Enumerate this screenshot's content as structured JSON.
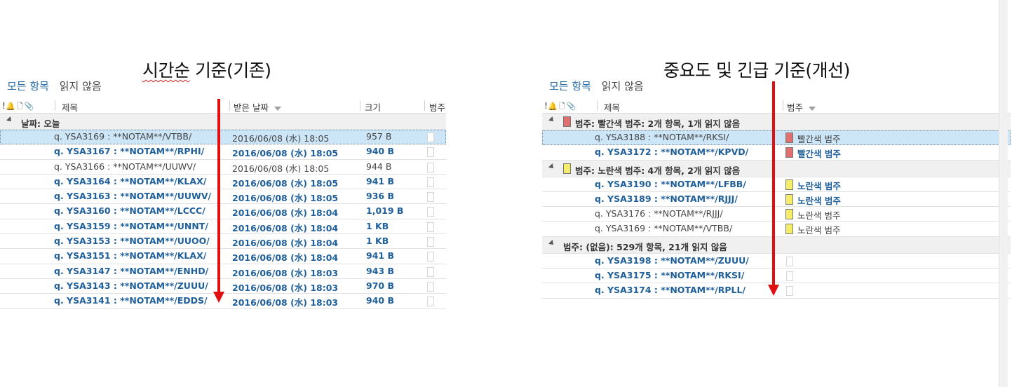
{
  "left": {
    "caption_main": "시간순",
    "caption_rest": " 기준(기존)",
    "filters": {
      "all": "모든 항목",
      "unread": "읽지 않음"
    },
    "columns": {
      "flags": "!",
      "subject": "제목",
      "received": "받은 날짜",
      "size": "크기",
      "category": "범주"
    },
    "group": "날짜: 오늘",
    "rows": [
      {
        "subject": "q. YSA3169 : **NOTAM**/VTBB/",
        "date": "2016/06/08 (水) 18:05",
        "size": "957 B",
        "state": "selected"
      },
      {
        "subject": "q. YSA3167 : **NOTAM**/RPHI/",
        "date": "2016/06/08 (水) 18:05",
        "size": "940 B",
        "state": "unread"
      },
      {
        "subject": "q. YSA3166 : **NOTAM**/UUWV/",
        "date": "2016/06/08 (水) 18:05",
        "size": "944 B",
        "state": "read"
      },
      {
        "subject": "q. YSA3164 : **NOTAM**/KLAX/",
        "date": "2016/06/08 (水) 18:05",
        "size": "941 B",
        "state": "unread"
      },
      {
        "subject": "q. YSA3163 : **NOTAM**/UUWV/",
        "date": "2016/06/08 (水) 18:05",
        "size": "936 B",
        "state": "unread"
      },
      {
        "subject": "q. YSA3160 : **NOTAM**/LCCC/",
        "date": "2016/06/08 (水) 18:04",
        "size": "1,019 B",
        "state": "unread"
      },
      {
        "subject": "q. YSA3159 : **NOTAM**/UNNT/",
        "date": "2016/06/08 (水) 18:04",
        "size": "1 KB",
        "state": "unread"
      },
      {
        "subject": "q. YSA3153 : **NOTAM**/UUOO/",
        "date": "2016/06/08 (水) 18:04",
        "size": "1 KB",
        "state": "unread"
      },
      {
        "subject": "q. YSA3151 : **NOTAM**/KLAX/",
        "date": "2016/06/08 (水) 18:04",
        "size": "941 B",
        "state": "unread"
      },
      {
        "subject": "q. YSA3147 : **NOTAM**/ENHD/",
        "date": "2016/06/08 (水) 18:03",
        "size": "943 B",
        "state": "unread"
      },
      {
        "subject": "q. YSA3143 : **NOTAM**/ZUUU/",
        "date": "2016/06/08 (水) 18:03",
        "size": "970 B",
        "state": "unread"
      },
      {
        "subject": "q. YSA3141 : **NOTAM**/EDDS/",
        "date": "2016/06/08 (水) 18:03",
        "size": "940 B",
        "state": "unread"
      }
    ]
  },
  "right": {
    "caption": "중요도 및 긴급 기준(개선)",
    "filters": {
      "all": "모든 항목",
      "unread": "읽지 않음"
    },
    "columns": {
      "flags": "!",
      "subject": "제목",
      "category": "범주"
    },
    "groups": [
      {
        "label": "범주: 빨간색 범주: 2개 항목, 1개 읽지 않음",
        "color": "#e07070",
        "rows": [
          {
            "subject": "q. YSA3188 : **NOTAM**/RKSI/",
            "category": "빨간색 범주",
            "state": "selected"
          },
          {
            "subject": "q. YSA3172 : **NOTAM**/KPVD/",
            "category": "빨간색 범주",
            "state": "unread"
          }
        ]
      },
      {
        "label": "범주: 노란색 범주: 4개 항목, 2개 읽지 않음",
        "color": "#f5ec6a",
        "rows": [
          {
            "subject": "q. YSA3190 : **NOTAM**/LFBB/",
            "category": "노란색 범주",
            "state": "unread"
          },
          {
            "subject": "q. YSA3189 : **NOTAM**/RJJJ/",
            "category": "노란색 범주",
            "state": "unread"
          },
          {
            "subject": "q. YSA3176 : **NOTAM**/RJJJ/",
            "category": "노란색 범주",
            "state": "read"
          },
          {
            "subject": "q. YSA3169 : **NOTAM**/VTBB/",
            "category": "노란색 범주",
            "state": "read"
          }
        ]
      },
      {
        "label": "범주: (없음): 529개 항목, 21개 읽지 않음",
        "color": "",
        "rows": [
          {
            "subject": "q. YSA3198 : **NOTAM**/ZUUU/",
            "category": "",
            "state": "unread"
          },
          {
            "subject": "q. YSA3175 : **NOTAM**/RKSI/",
            "category": "",
            "state": "unread"
          },
          {
            "subject": "q. YSA3174 : **NOTAM**/RPLL/",
            "category": "",
            "state": "unread"
          }
        ]
      }
    ]
  },
  "annotation_color": "#e01010"
}
